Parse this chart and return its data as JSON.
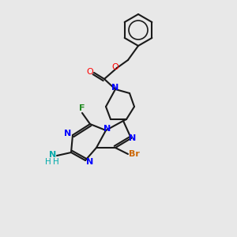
{
  "background_color": "#e8e8e8",
  "atom_colors": {
    "N": "#0000ff",
    "O": "#ff0000",
    "Br": "#cc6600",
    "F": "#228B22",
    "C": "#000000",
    "NH": "#00aaaa",
    "H": "#00aaaa"
  },
  "figsize": [
    3.0,
    3.0
  ],
  "dpi": 100
}
